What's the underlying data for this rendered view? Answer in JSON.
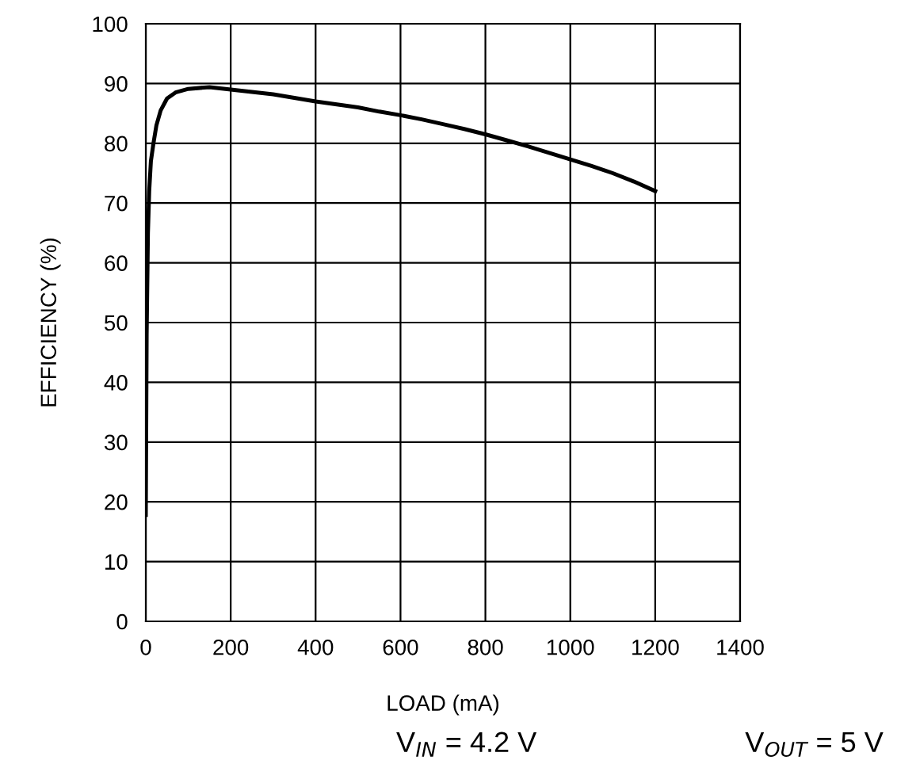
{
  "chart_data": {
    "type": "line",
    "xlabel": "LOAD (mA)",
    "ylabel": "EFFICIENCY (%)",
    "series": [
      {
        "color": "#000000",
        "x": [
          0,
          2,
          5,
          8,
          12,
          18,
          25,
          35,
          50,
          70,
          100,
          150,
          200,
          250,
          300,
          350,
          400,
          450,
          500,
          550,
          600,
          650,
          700,
          750,
          800,
          850,
          900,
          950,
          1000,
          1050,
          1100,
          1150,
          1200
        ],
        "values": [
          17.8,
          48,
          65,
          72,
          77,
          80,
          83,
          85.5,
          87.5,
          88.5,
          89.1,
          89.4,
          89.0,
          88.6,
          88.2,
          87.6,
          87.0,
          86.5,
          86.0,
          85.3,
          84.7,
          84.0,
          83.2,
          82.4,
          81.5,
          80.5,
          79.5,
          78.4,
          77.3,
          76.2,
          75.0,
          73.6,
          72.0
        ]
      }
    ],
    "xlim": [
      0,
      1400
    ],
    "xticks": [
      0,
      200,
      400,
      600,
      800,
      1000,
      1200,
      1400
    ],
    "ylim": [
      0,
      100
    ],
    "yticks": [
      0,
      10,
      20,
      30,
      40,
      50,
      60,
      70,
      80,
      90,
      100
    ],
    "grid": true,
    "marker": "none",
    "line_style": "solid",
    "annotations": [
      "V$_{IN}$ = 4.2 V",
      "V$_{OUT}$ = 5 V"
    ]
  }
}
